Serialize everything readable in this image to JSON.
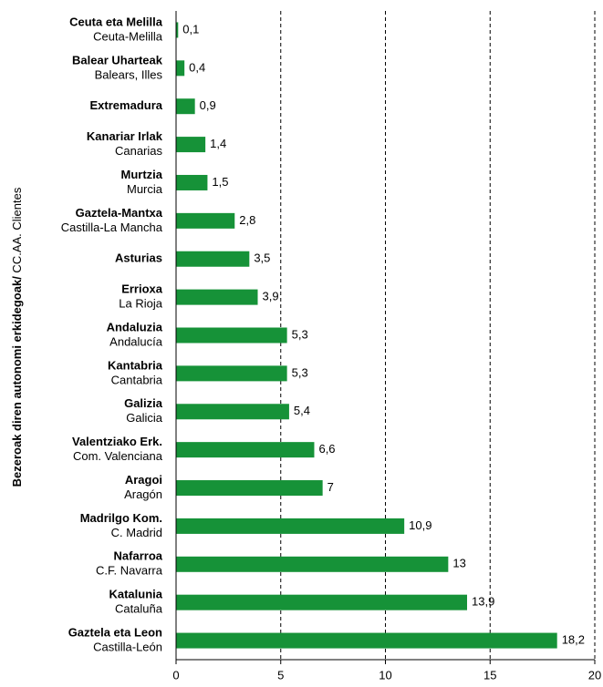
{
  "chart_data": {
    "type": "barh",
    "ylabel": [
      "Bezeroak diren autonomi erkidegoak/",
      "CC.AA. Clientes"
    ],
    "categories": [
      [
        "Ceuta eta Melilla",
        "Ceuta-Melilla"
      ],
      [
        "Balear Uharteak",
        "Balears, Illes"
      ],
      [
        "Extremadura"
      ],
      [
        "Kanariar Irlak",
        "Canarias"
      ],
      [
        "Murtzia",
        "Murcia"
      ],
      [
        "Gaztela-Mantxa",
        "Castilla-La Mancha"
      ],
      [
        "Asturias"
      ],
      [
        "Errioxa",
        "La Rioja"
      ],
      [
        "Andaluzia",
        "Andalucía"
      ],
      [
        "Kantabria",
        "Cantabria"
      ],
      [
        "Galizia",
        "Galicia"
      ],
      [
        "Valentziako Erk.",
        "Com. Valenciana"
      ],
      [
        "Aragoi",
        "Aragón"
      ],
      [
        "Madrilgo Kom.",
        "C. Madrid"
      ],
      [
        "Nafarroa",
        "C.F. Navarra"
      ],
      [
        "Katalunia",
        "Cataluña"
      ],
      [
        "Gaztela eta Leon",
        "Castilla-León"
      ]
    ],
    "values": [
      0.1,
      0.4,
      0.9,
      1.4,
      1.5,
      2.8,
      3.5,
      3.9,
      5.3,
      5.3,
      5.4,
      6.6,
      7,
      10.9,
      13,
      13.9,
      18.2
    ],
    "value_labels": [
      "0,1",
      "0,4",
      "0,9",
      "1,4",
      "1,5",
      "2,8",
      "3,5",
      "3,9",
      "5,3",
      "5,3",
      "5,4",
      "6,6",
      "7",
      "10,9",
      "13",
      "13,9",
      "18,2"
    ],
    "color": "#169238",
    "xlim": [
      0,
      20
    ],
    "xticks": [
      0,
      5,
      10,
      15,
      20
    ],
    "grid": true
  }
}
